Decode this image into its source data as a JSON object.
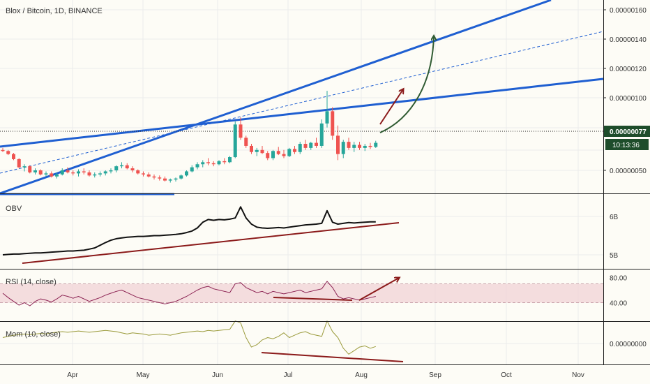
{
  "chart_data": {
    "type": "candlestick",
    "title": "Blox / Bitcoin, 1D, BINANCE",
    "colors": {
      "up": "#26a69a",
      "down": "#ef5350",
      "channel": "#1f5fd1",
      "trendline": "#8b1a1a",
      "curved_arrow": "#2f5b32",
      "obv_line": "#111111",
      "rsi_line": "#8b2252",
      "rsi_band": "#f1d4d8",
      "mom_line": "#9a9a3a",
      "price_badge": "#1e4d2b"
    },
    "x_axis": {
      "ticks": [
        "Apr",
        "May",
        "Jun",
        "Jul",
        "Aug",
        "Sep",
        "Oct",
        "Nov"
      ]
    },
    "price_pane": {
      "y_ticks": [
        "0.00000160",
        "0.00000140",
        "0.00000120",
        "0.00000100",
        "0.00000050"
      ],
      "current_price": "0.00000077",
      "countdown": "10:13:36",
      "candles": [
        [
          70,
          72,
          68,
          69
        ],
        [
          69,
          70,
          65,
          66
        ],
        [
          66,
          67,
          60,
          61
        ],
        [
          61,
          62,
          52,
          53
        ],
        [
          53,
          56,
          49,
          54
        ],
        [
          54,
          55,
          47,
          48
        ],
        [
          48,
          52,
          46,
          50
        ],
        [
          50,
          51,
          45,
          46
        ],
        [
          46,
          49,
          44,
          47
        ],
        [
          47,
          49,
          43,
          44
        ],
        [
          44,
          48,
          42,
          46
        ],
        [
          46,
          52,
          45,
          50
        ],
        [
          50,
          53,
          47,
          48
        ],
        [
          48,
          50,
          45,
          47
        ],
        [
          47,
          51,
          44,
          49
        ],
        [
          49,
          52,
          46,
          48
        ],
        [
          48,
          50,
          44,
          45
        ],
        [
          45,
          48,
          43,
          46
        ],
        [
          46,
          49,
          44,
          47
        ],
        [
          47,
          50,
          45,
          49
        ],
        [
          49,
          52,
          47,
          50
        ],
        [
          50,
          55,
          48,
          54
        ],
        [
          54,
          58,
          52,
          55
        ],
        [
          55,
          57,
          51,
          52
        ],
        [
          52,
          54,
          48,
          50
        ],
        [
          50,
          51,
          46,
          47
        ],
        [
          47,
          49,
          44,
          46
        ],
        [
          46,
          48,
          43,
          44
        ],
        [
          44,
          46,
          41,
          43
        ],
        [
          43,
          45,
          40,
          42
        ],
        [
          42,
          44,
          39,
          40
        ],
        [
          40,
          42,
          38,
          41
        ],
        [
          41,
          43,
          39,
          42
        ],
        [
          42,
          46,
          41,
          45
        ],
        [
          45,
          50,
          44,
          49
        ],
        [
          49,
          55,
          48,
          53
        ],
        [
          53,
          58,
          51,
          56
        ],
        [
          56,
          60,
          53,
          58
        ],
        [
          58,
          62,
          55,
          57
        ],
        [
          57,
          59,
          54,
          56
        ],
        [
          56,
          60,
          55,
          59
        ],
        [
          59,
          62,
          56,
          58
        ],
        [
          58,
          64,
          57,
          63
        ],
        [
          63,
          98,
          62,
          95
        ],
        [
          95,
          102,
          80,
          82
        ],
        [
          82,
          84,
          72,
          74
        ],
        [
          74,
          76,
          66,
          68
        ],
        [
          68,
          72,
          64,
          70
        ],
        [
          70,
          74,
          66,
          67
        ],
        [
          67,
          69,
          60,
          62
        ],
        [
          62,
          70,
          60,
          69
        ],
        [
          69,
          73,
          65,
          66
        ],
        [
          66,
          70,
          62,
          64
        ],
        [
          64,
          72,
          63,
          71
        ],
        [
          71,
          74,
          66,
          68
        ],
        [
          68,
          78,
          66,
          76
        ],
        [
          76,
          80,
          70,
          72
        ],
        [
          72,
          78,
          70,
          77
        ],
        [
          77,
          82,
          72,
          74
        ],
        [
          74,
          100,
          72,
          96
        ],
        [
          96,
          128,
          92,
          108
        ],
        [
          108,
          112,
          80,
          84
        ],
        [
          84,
          94,
          60,
          66
        ],
        [
          66,
          80,
          62,
          78
        ],
        [
          78,
          82,
          70,
          72
        ],
        [
          72,
          78,
          68,
          75
        ],
        [
          75,
          78,
          70,
          72
        ],
        [
          72,
          76,
          69,
          74
        ],
        [
          74,
          77,
          71,
          73
        ],
        [
          73,
          79,
          72,
          77
        ]
      ]
    },
    "obv_pane": {
      "label": "OBV",
      "y_ticks": [
        "6B",
        "5B"
      ],
      "values": [
        5.0,
        5.01,
        5.02,
        5.02,
        5.03,
        5.04,
        5.05,
        5.05,
        5.06,
        5.07,
        5.08,
        5.09,
        5.1,
        5.1,
        5.11,
        5.12,
        5.15,
        5.18,
        5.25,
        5.32,
        5.38,
        5.42,
        5.44,
        5.46,
        5.47,
        5.48,
        5.48,
        5.49,
        5.5,
        5.5,
        5.51,
        5.52,
        5.53,
        5.55,
        5.58,
        5.62,
        5.7,
        5.85,
        5.92,
        5.9,
        5.92,
        5.91,
        5.93,
        5.96,
        6.25,
        5.96,
        5.8,
        5.72,
        5.7,
        5.69,
        5.7,
        5.71,
        5.7,
        5.72,
        5.74,
        5.76,
        5.78,
        5.79,
        5.8,
        5.82,
        6.15,
        5.85,
        5.8,
        5.82,
        5.84,
        5.83,
        5.84,
        5.85,
        5.86,
        5.86
      ]
    },
    "rsi_pane": {
      "label": "RSI (14, close)",
      "y_ticks": [
        "80.00",
        "40.00"
      ],
      "band": [
        40,
        70
      ],
      "values": [
        55,
        48,
        42,
        36,
        40,
        35,
        42,
        46,
        44,
        41,
        46,
        52,
        50,
        47,
        50,
        46,
        42,
        45,
        48,
        52,
        55,
        58,
        60,
        56,
        52,
        48,
        46,
        44,
        42,
        40,
        38,
        40,
        42,
        46,
        50,
        55,
        60,
        64,
        66,
        62,
        60,
        58,
        56,
        70,
        72,
        64,
        60,
        56,
        58,
        54,
        58,
        56,
        54,
        56,
        58,
        60,
        56,
        58,
        60,
        62,
        74,
        64,
        50,
        46,
        48,
        46,
        44,
        46,
        48,
        50
      ]
    },
    "mom_pane": {
      "label": "Mom (10, close)",
      "y_ticks": [
        "0.00000000"
      ],
      "values": [
        10,
        12,
        14,
        15,
        16,
        15,
        16,
        17,
        16,
        18,
        19,
        20,
        19,
        20,
        21,
        20,
        19,
        20,
        21,
        22,
        21,
        20,
        18,
        16,
        18,
        17,
        16,
        14,
        15,
        16,
        15,
        14,
        16,
        18,
        19,
        20,
        21,
        20,
        22,
        21,
        22,
        23,
        24,
        38,
        35,
        10,
        -6,
        -2,
        6,
        10,
        8,
        12,
        18,
        10,
        14,
        18,
        20,
        16,
        14,
        12,
        38,
        20,
        10,
        -8,
        -18,
        -12,
        -6,
        -4,
        -8,
        -5
      ]
    }
  }
}
